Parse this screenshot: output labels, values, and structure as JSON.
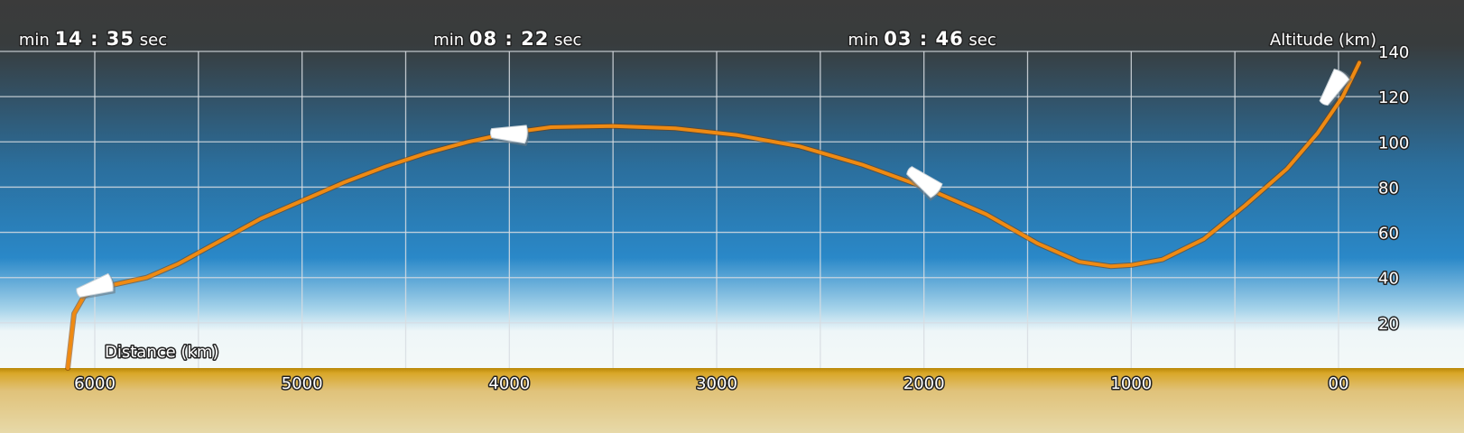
{
  "chart_data": {
    "type": "line",
    "xlabel": "Distance (km)",
    "ylabel": "Altitude (km)",
    "xlim": [
      6150,
      -100
    ],
    "ylim": [
      0,
      140
    ],
    "x_ticks": [
      6000,
      5000,
      4000,
      3000,
      2000,
      1000,
      0
    ],
    "x_tick_labels": [
      "6000",
      "5000",
      "4000",
      "3000",
      "2000",
      "1000",
      "00"
    ],
    "y_ticks": [
      20,
      40,
      60,
      80,
      100,
      120,
      140
    ],
    "y_tick_labels": [
      "20",
      "40",
      "60",
      "80",
      "100",
      "120",
      "140"
    ],
    "grid": true,
    "series": [
      {
        "x": [
          -100,
          -20,
          100,
          250,
          450,
          650,
          850,
          1000,
          1100,
          1250,
          1450,
          1700,
          2000,
          2300,
          2600,
          2900,
          3200,
          3500,
          3800,
          4000,
          4200,
          4400,
          4600,
          4800,
          5000,
          5200,
          5400,
          5600,
          5750,
          5850,
          5950,
          6050,
          6100,
          6130
        ],
        "y": [
          135,
          120,
          104,
          88,
          72,
          57,
          48,
          45.5,
          45,
          47,
          55,
          68,
          80,
          90,
          98,
          103,
          106,
          107,
          106.5,
          104,
          100,
          95,
          89,
          82,
          74,
          66,
          56,
          46,
          40,
          38,
          36,
          32,
          24,
          0
        ]
      }
    ],
    "annotations": [
      {
        "prefix": "min",
        "time": "14 : 35",
        "suffix": "sec",
        "x": 6000
      },
      {
        "prefix": "min",
        "time": "08 : 22",
        "suffix": "sec",
        "x": 4000
      },
      {
        "prefix": "min",
        "time": "03 : 46",
        "suffix": "sec",
        "x": 2000
      }
    ],
    "markers": [
      {
        "x": 6000,
        "y": 36,
        "angle": -15
      },
      {
        "x": 4000,
        "y": 104,
        "angle": 5
      },
      {
        "x": 2000,
        "y": 83,
        "angle": 40
      },
      {
        "x": 30,
        "y": 124,
        "angle": -55
      }
    ],
    "colors": {
      "line": "#ef8a12",
      "line_edge": "#7a3a00",
      "grid": "#d8dde2",
      "sky_top": "#3a3a3a",
      "sky_mid": "#2a87c6",
      "sky_bottom": "#f2f8f8",
      "ground_top": "#d4a019",
      "ground_bottom": "#e6d8a6",
      "text": "#ffffff"
    }
  }
}
